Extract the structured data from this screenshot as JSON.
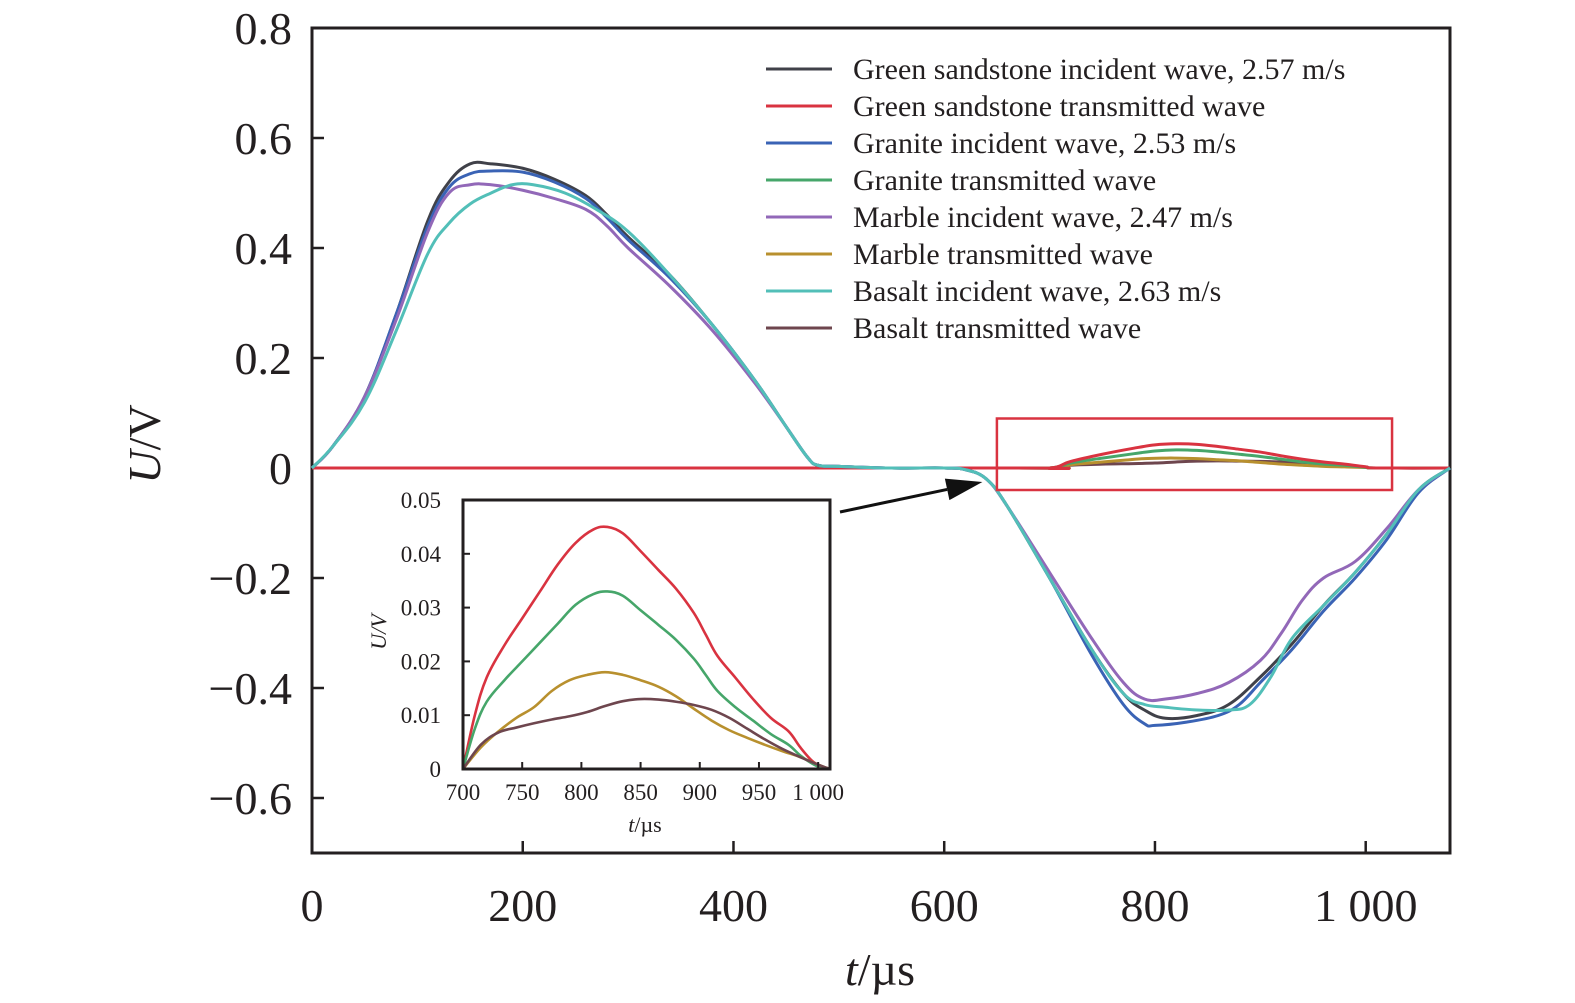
{
  "chart_data": {
    "type": "line",
    "title": "",
    "xlabel": "t/µs",
    "xlabel_var": "t",
    "xlabel_unit": "/µs",
    "ylabel": "U/V",
    "ylabel_var": "U",
    "ylabel_unit": "/V",
    "xlim": [
      0,
      1080
    ],
    "ylim": [
      -0.7,
      0.8
    ],
    "grid": false,
    "legend_position": "top-right",
    "x_ticks": [
      0,
      200,
      400,
      600,
      800,
      1000
    ],
    "x_tick_labels": [
      "0",
      "200",
      "400",
      "600",
      "800",
      "1 000"
    ],
    "y_ticks": [
      0.8,
      0.6,
      0.4,
      0.2,
      0,
      -0.2,
      -0.4,
      -0.6
    ],
    "y_tick_labels": [
      "0.8",
      "0.6",
      "0.4",
      "0.2",
      "0",
      "−0.2",
      "−0.4",
      "−0.6"
    ],
    "series": [
      {
        "name": "Green sandstone incident wave, 2.57 m/s",
        "color": "#404149",
        "x": [
          0,
          20,
          50,
          80,
          110,
          130,
          150,
          170,
          200,
          230,
          260,
          280,
          300,
          340,
          380,
          420,
          450,
          470,
          480,
          500,
          550,
          600,
          620,
          640,
          660,
          700,
          740,
          770,
          790,
          810,
          840,
          870,
          900,
          930,
          960,
          990,
          1020,
          1050,
          1080
        ],
        "y": [
          0,
          0.04,
          0.13,
          0.28,
          0.45,
          0.52,
          0.553,
          0.553,
          0.545,
          0.525,
          0.495,
          0.46,
          0.42,
          0.35,
          0.26,
          0.16,
          0.075,
          0.02,
          0.005,
          0.003,
          0.0,
          0.0,
          -0.003,
          -0.02,
          -0.07,
          -0.2,
          -0.33,
          -0.41,
          -0.44,
          -0.455,
          -0.45,
          -0.43,
          -0.38,
          -0.32,
          -0.25,
          -0.19,
          -0.12,
          -0.04,
          0
        ]
      },
      {
        "name": "Green sandstone transmitted wave",
        "color": "#d93340",
        "x": [
          0,
          650,
          700,
          720,
          750,
          780,
          800,
          820,
          840,
          860,
          880,
          900,
          920,
          940,
          960,
          980,
          1000,
          1010,
          1080
        ],
        "y": [
          0,
          0,
          0,
          0.012,
          0.025,
          0.036,
          0.042,
          0.044,
          0.043,
          0.039,
          0.034,
          0.029,
          0.022,
          0.016,
          0.011,
          0.007,
          0.002,
          0,
          0
        ]
      },
      {
        "name": "Granite incident wave, 2.53 m/s",
        "color": "#3a63b5",
        "x": [
          0,
          20,
          50,
          80,
          110,
          130,
          150,
          170,
          200,
          230,
          260,
          280,
          300,
          340,
          380,
          420,
          450,
          470,
          480,
          500,
          550,
          600,
          620,
          640,
          660,
          700,
          740,
          770,
          790,
          800,
          830,
          860,
          880,
          900,
          930,
          960,
          990,
          1020,
          1050,
          1080
        ],
        "y": [
          0,
          0.04,
          0.13,
          0.28,
          0.44,
          0.51,
          0.535,
          0.54,
          0.538,
          0.52,
          0.49,
          0.455,
          0.415,
          0.345,
          0.26,
          0.16,
          0.075,
          0.02,
          0.005,
          0.003,
          0.0,
          0.0,
          -0.003,
          -0.02,
          -0.07,
          -0.2,
          -0.34,
          -0.43,
          -0.465,
          -0.468,
          -0.462,
          -0.45,
          -0.43,
          -0.39,
          -0.33,
          -0.26,
          -0.2,
          -0.13,
          -0.045,
          0
        ]
      },
      {
        "name": "Granite transmitted wave",
        "color": "#46a66a",
        "x": [
          0,
          650,
          700,
          720,
          750,
          780,
          800,
          820,
          840,
          860,
          880,
          900,
          920,
          940,
          960,
          980,
          1000,
          1010,
          1080
        ],
        "y": [
          0,
          0,
          0,
          0.009,
          0.018,
          0.026,
          0.031,
          0.033,
          0.032,
          0.029,
          0.025,
          0.021,
          0.016,
          0.011,
          0.007,
          0.005,
          0.001,
          0,
          0
        ]
      },
      {
        "name": "Marble incident wave, 2.47 m/s",
        "color": "#9268b8",
        "x": [
          0,
          20,
          50,
          80,
          110,
          130,
          150,
          170,
          200,
          230,
          260,
          280,
          300,
          340,
          380,
          420,
          450,
          470,
          480,
          500,
          550,
          600,
          620,
          640,
          660,
          700,
          740,
          770,
          790,
          810,
          840,
          870,
          900,
          920,
          940,
          960,
          990,
          1020,
          1050,
          1080
        ],
        "y": [
          0,
          0.04,
          0.13,
          0.27,
          0.43,
          0.5,
          0.515,
          0.515,
          0.505,
          0.49,
          0.47,
          0.44,
          0.4,
          0.33,
          0.25,
          0.155,
          0.075,
          0.02,
          0.005,
          0.003,
          0.0,
          0.0,
          -0.003,
          -0.02,
          -0.07,
          -0.19,
          -0.31,
          -0.39,
          -0.42,
          -0.42,
          -0.41,
          -0.39,
          -0.35,
          -0.3,
          -0.24,
          -0.2,
          -0.17,
          -0.11,
          -0.04,
          0
        ]
      },
      {
        "name": "Marble transmitted wave",
        "color": "#b8902e",
        "x": [
          0,
          650,
          700,
          720,
          750,
          770,
          790,
          810,
          820,
          840,
          860,
          880,
          900,
          920,
          940,
          960,
          980,
          1000,
          1010,
          1080
        ],
        "y": [
          0,
          0,
          0,
          0.006,
          0.011,
          0.014,
          0.017,
          0.018,
          0.018,
          0.017,
          0.015,
          0.013,
          0.01,
          0.007,
          0.005,
          0.003,
          0.002,
          0.001,
          0,
          0
        ]
      },
      {
        "name": "Basalt incident wave, 2.63 m/s",
        "color": "#52bfb8",
        "x": [
          0,
          20,
          50,
          80,
          110,
          130,
          150,
          170,
          190,
          210,
          240,
          270,
          300,
          340,
          380,
          420,
          450,
          470,
          480,
          500,
          550,
          600,
          620,
          640,
          660,
          700,
          740,
          770,
          790,
          810,
          840,
          870,
          890,
          910,
          930,
          960,
          990,
          1020,
          1050,
          1080
        ],
        "y": [
          0,
          0.04,
          0.12,
          0.25,
          0.39,
          0.445,
          0.48,
          0.5,
          0.515,
          0.515,
          0.5,
          0.47,
          0.43,
          0.35,
          0.26,
          0.16,
          0.075,
          0.02,
          0.005,
          0.003,
          0.0,
          0.0,
          -0.003,
          -0.02,
          -0.07,
          -0.2,
          -0.33,
          -0.41,
          -0.43,
          -0.435,
          -0.44,
          -0.44,
          -0.43,
          -0.38,
          -0.31,
          -0.25,
          -0.19,
          -0.12,
          -0.04,
          0
        ]
      },
      {
        "name": "Basalt transmitted wave",
        "color": "#6e464e",
        "x": [
          0,
          650,
          700,
          720,
          750,
          780,
          800,
          820,
          840,
          860,
          880,
          900,
          920,
          940,
          960,
          980,
          1000,
          1010,
          1080
        ],
        "y": [
          0,
          0,
          0,
          0.005,
          0.007,
          0.008,
          0.009,
          0.011,
          0.0125,
          0.013,
          0.0125,
          0.012,
          0.011,
          0.008,
          0.006,
          0.004,
          0.002,
          0,
          0
        ]
      }
    ],
    "annotations": {
      "highlight_box": {
        "x_range": [
          650,
          1025
        ],
        "y_range": [
          -0.04,
          0.09
        ],
        "color": "#d93340"
      },
      "arrow": {
        "from": "inset",
        "to_x": 640,
        "to_y": -0.02
      }
    },
    "inset": {
      "type": "line",
      "xlabel": "t/µs",
      "xlabel_var": "t",
      "xlabel_unit": "/µs",
      "ylabel": "U/V",
      "ylabel_var": "U/V",
      "xlim": [
        700,
        1010
      ],
      "ylim": [
        0,
        0.05
      ],
      "x_ticks": [
        700,
        750,
        800,
        850,
        900,
        950,
        1000
      ],
      "x_tick_labels": [
        "700",
        "750",
        "800",
        "850",
        "900",
        "950",
        "1 000"
      ],
      "y_ticks": [
        0,
        0.01,
        0.02,
        0.03,
        0.04,
        0.05
      ],
      "y_tick_labels": [
        "0",
        "0.01",
        "0.02",
        "0.03",
        "0.04",
        "0.05"
      ],
      "series": [
        {
          "name": "Green sandstone transmitted wave",
          "color": "#d93340",
          "x": [
            700,
            710,
            720,
            735,
            750,
            765,
            780,
            795,
            810,
            822,
            835,
            850,
            865,
            880,
            895,
            905,
            915,
            930,
            945,
            960,
            975,
            985,
            995,
            1003,
            1010
          ],
          "y": [
            0,
            0.01,
            0.017,
            0.023,
            0.028,
            0.033,
            0.038,
            0.042,
            0.0445,
            0.045,
            0.0438,
            0.0405,
            0.037,
            0.0335,
            0.029,
            0.025,
            0.021,
            0.017,
            0.013,
            0.0095,
            0.007,
            0.004,
            0.0015,
            0.0005,
            0
          ]
        },
        {
          "name": "Granite transmitted wave",
          "color": "#46a66a",
          "x": [
            700,
            710,
            720,
            735,
            750,
            765,
            780,
            795,
            810,
            822,
            835,
            850,
            865,
            880,
            895,
            905,
            915,
            930,
            945,
            960,
            975,
            985,
            995,
            1003,
            1010
          ],
          "y": [
            0,
            0.0075,
            0.0125,
            0.0165,
            0.02,
            0.0235,
            0.027,
            0.0305,
            0.0325,
            0.033,
            0.0322,
            0.0295,
            0.0268,
            0.024,
            0.0205,
            0.0175,
            0.0145,
            0.0115,
            0.009,
            0.0065,
            0.0045,
            0.0025,
            0.001,
            0.0002,
            0
          ]
        },
        {
          "name": "Marble transmitted wave",
          "color": "#b8902e",
          "x": [
            700,
            715,
            730,
            745,
            760,
            775,
            790,
            805,
            820,
            835,
            850,
            865,
            880,
            895,
            910,
            925,
            940,
            955,
            970,
            985,
            1000,
            1010
          ],
          "y": [
            0,
            0.004,
            0.007,
            0.0095,
            0.0115,
            0.0145,
            0.0165,
            0.0175,
            0.018,
            0.0175,
            0.0165,
            0.0153,
            0.0135,
            0.0112,
            0.009,
            0.0072,
            0.0058,
            0.0045,
            0.0033,
            0.0022,
            0.0008,
            0
          ]
        },
        {
          "name": "Basalt transmitted wave",
          "color": "#6e464e",
          "x": [
            700,
            715,
            730,
            745,
            760,
            775,
            790,
            805,
            820,
            835,
            850,
            865,
            880,
            895,
            910,
            925,
            940,
            955,
            970,
            985,
            1000,
            1010
          ],
          "y": [
            0,
            0.0045,
            0.0068,
            0.0077,
            0.0085,
            0.0092,
            0.0098,
            0.0106,
            0.0117,
            0.0126,
            0.013,
            0.0129,
            0.0125,
            0.0119,
            0.011,
            0.0095,
            0.0075,
            0.0055,
            0.0037,
            0.0022,
            0.0008,
            0
          ]
        }
      ]
    }
  }
}
